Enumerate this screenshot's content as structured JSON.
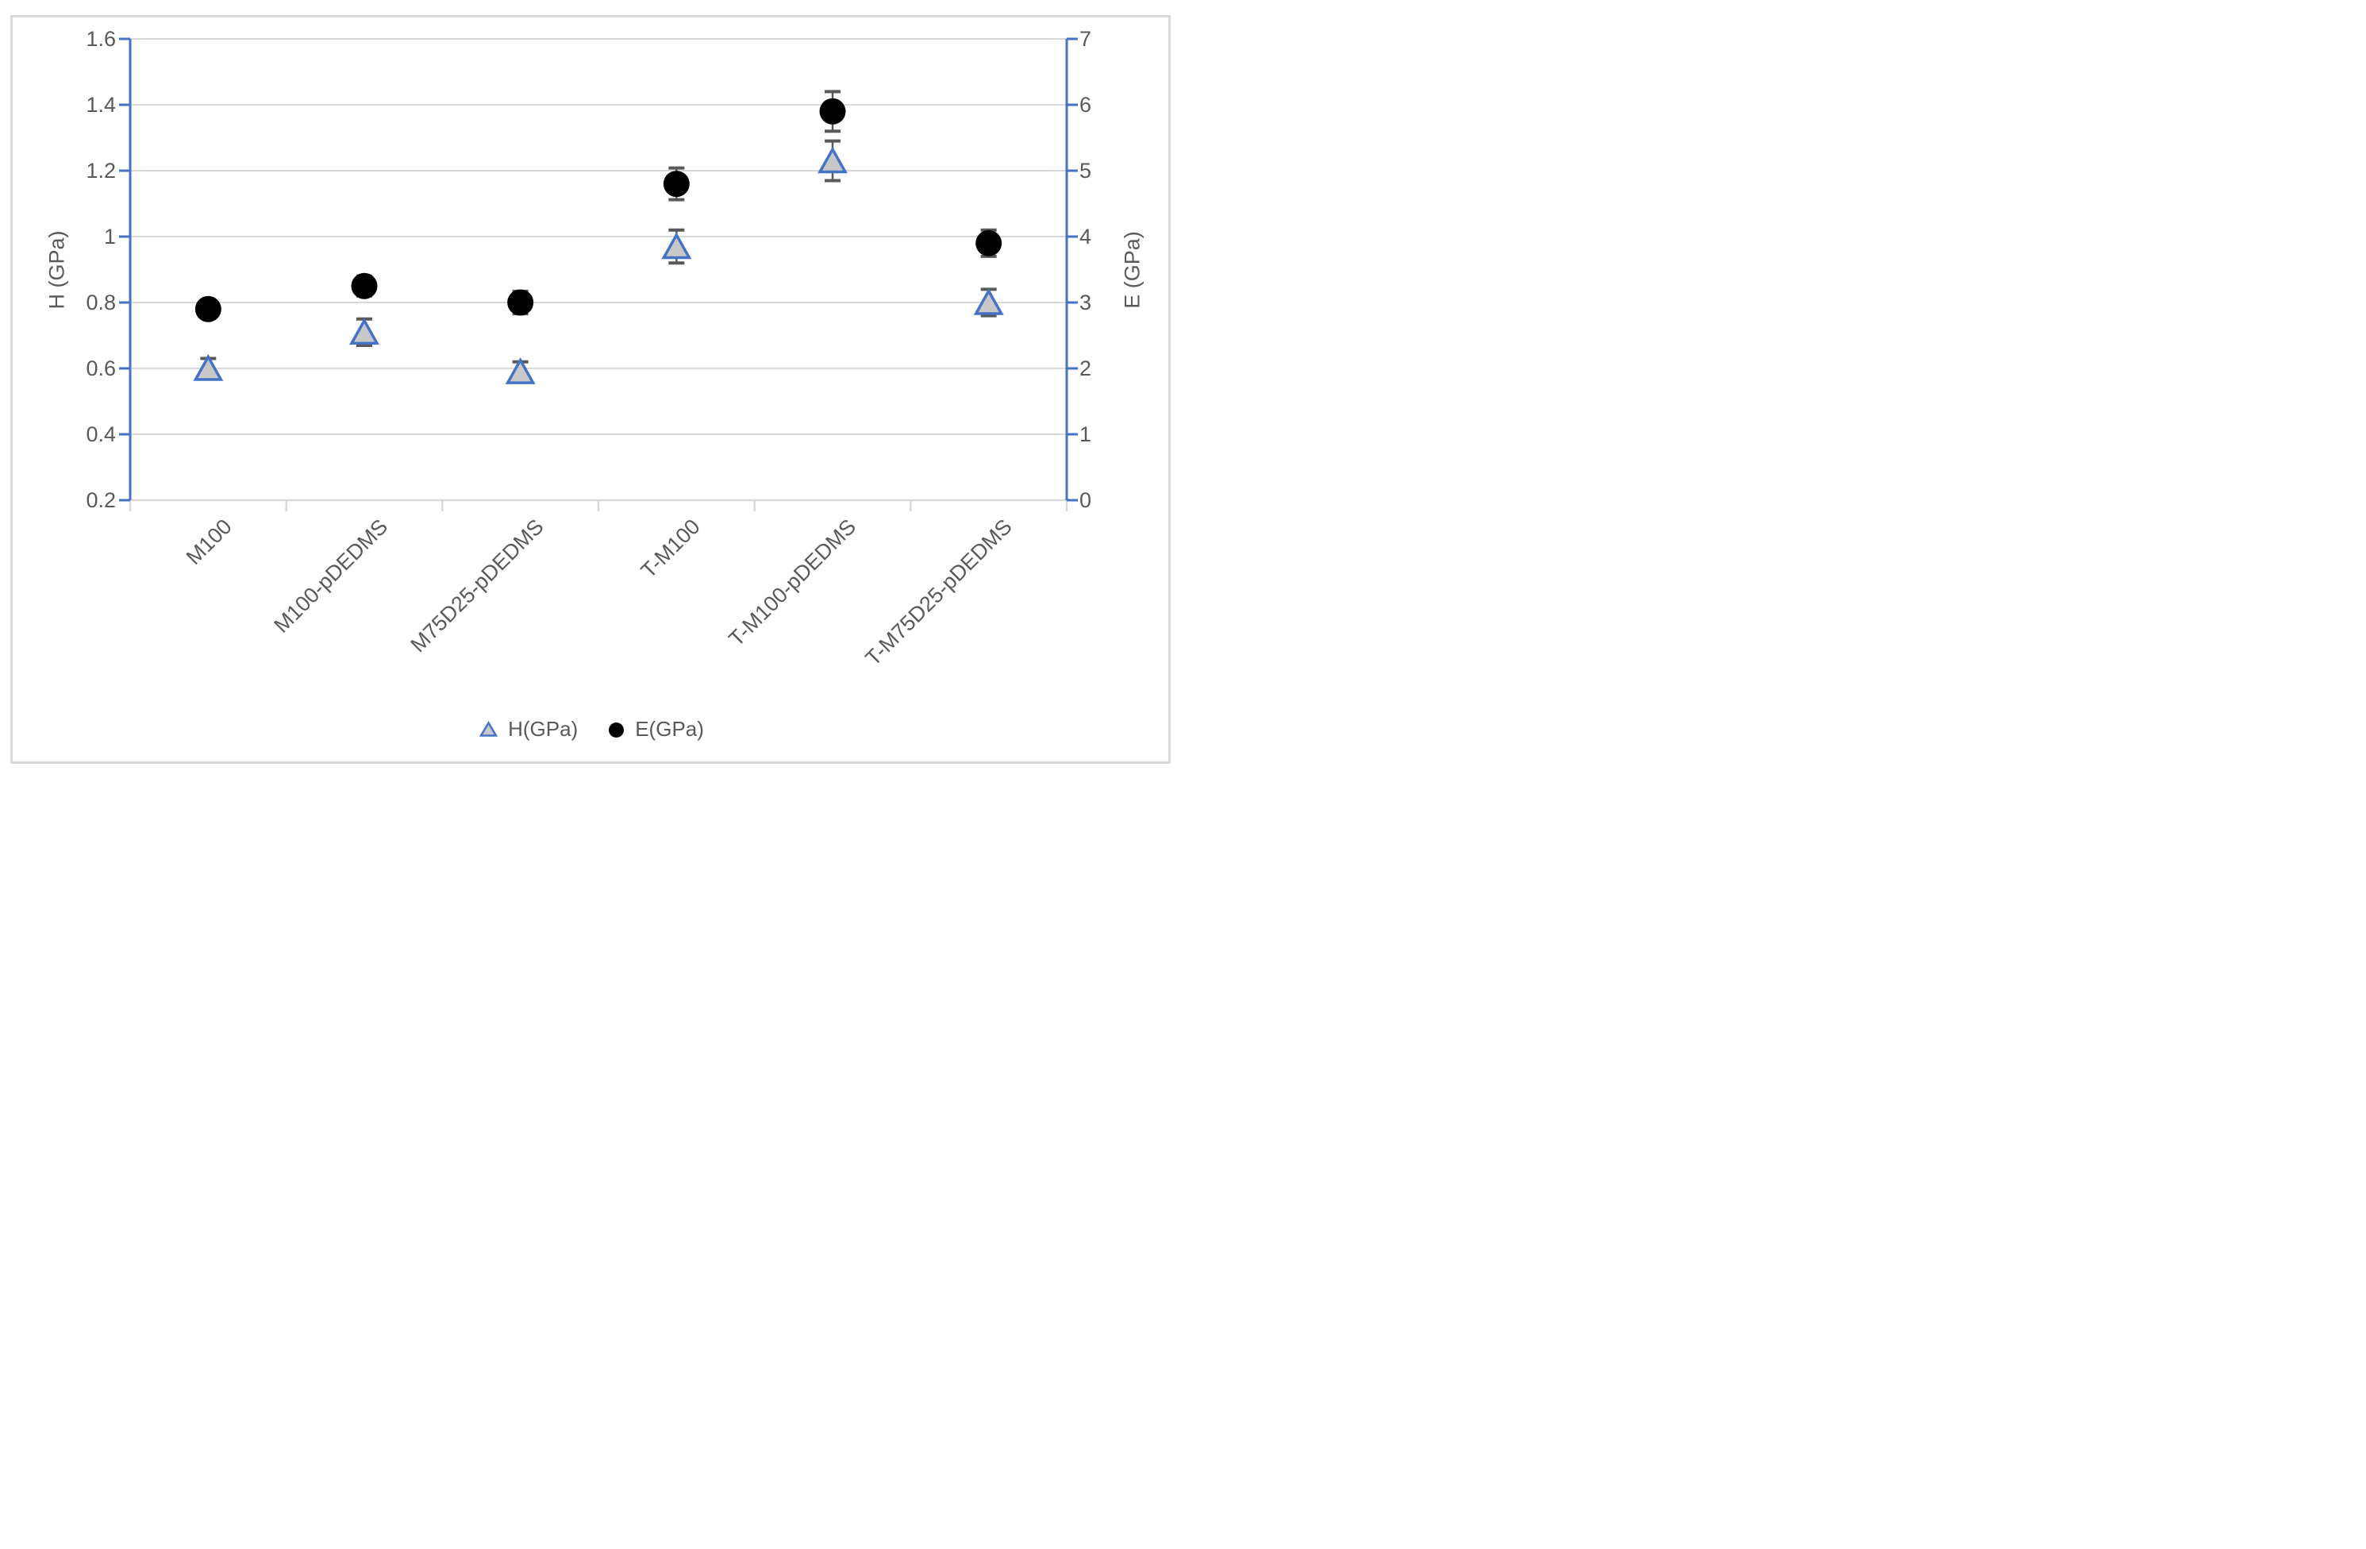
{
  "chart_data": {
    "type": "scatter",
    "categories": [
      "M100",
      "M100-pDEDMS",
      "M75D25-pDEDMS",
      "T-M100",
      "T-M100-pDEDMS",
      "T-M75D25-pDEDMS"
    ],
    "series": [
      {
        "name": "H(GPa)",
        "axis": "left",
        "marker": "triangle",
        "marker_fill": "#C8C8C8",
        "marker_border": "#4472C4",
        "values": [
          0.6,
          0.71,
          0.59,
          0.97,
          1.23,
          0.8
        ],
        "errors": [
          0.03,
          0.04,
          0.03,
          0.05,
          0.06,
          0.04
        ]
      },
      {
        "name": "E(GPa)",
        "axis": "right",
        "marker": "circle",
        "marker_fill": "#000000",
        "marker_border": "#000000",
        "values": [
          2.9,
          3.25,
          3.0,
          4.8,
          5.9,
          3.9
        ],
        "errors": [
          0.12,
          0.15,
          0.17,
          0.24,
          0.3,
          0.2
        ]
      }
    ],
    "left_axis": {
      "title": "H (GPa)",
      "min": 0.2,
      "max": 1.6,
      "ticks": [
        "1.6",
        "1.4",
        "1.2",
        "1",
        "0.8",
        "0.6",
        "0.4",
        "0.2"
      ]
    },
    "right_axis": {
      "title": "E (GPa)",
      "min": 0,
      "max": 7,
      "ticks": [
        "7",
        "6",
        "5",
        "4",
        "3",
        "2",
        "1",
        "0"
      ]
    },
    "legend": {
      "items": [
        "H(GPa)",
        "E(GPa)"
      ],
      "position": "bottom"
    },
    "grid": "horizontal-on",
    "colors": {
      "axis_line": "#4472C4",
      "gridline": "#D9D9D9",
      "category_axis": "#D9D9D9",
      "text": "#595959",
      "error_bar": "#595959"
    }
  }
}
